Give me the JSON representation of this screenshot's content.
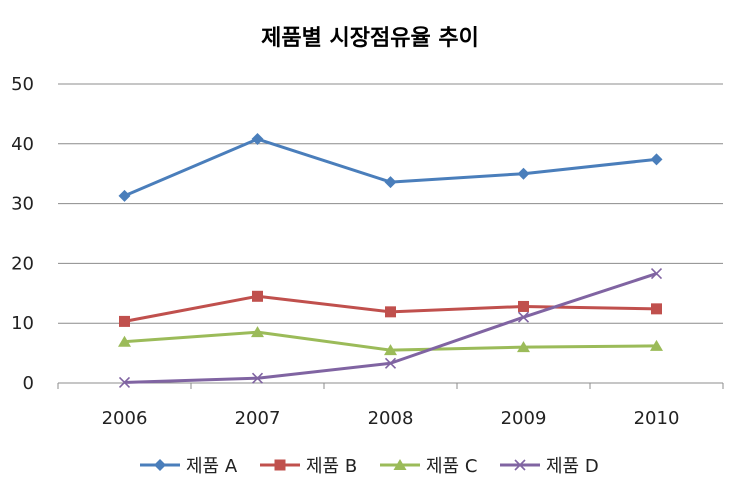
{
  "chart_data": {
    "type": "line",
    "title": "제품별 시장점유율 추이",
    "xlabel": "",
    "ylabel": "",
    "categories": [
      "2006",
      "2007",
      "2008",
      "2009",
      "2010"
    ],
    "ylim": [
      0,
      50
    ],
    "yticks": [
      "0",
      "10",
      "20",
      "30",
      "40",
      "50"
    ],
    "grid": true,
    "legend_position": "bottom",
    "series": [
      {
        "name": "제품 A",
        "values": [
          31.3,
          40.8,
          33.6,
          35.0,
          37.4
        ],
        "color": "#4a7ebb",
        "marker": "diamond"
      },
      {
        "name": "제품 B",
        "values": [
          10.3,
          14.5,
          11.9,
          12.8,
          12.4
        ],
        "color": "#c0504d",
        "marker": "square"
      },
      {
        "name": "제품 C",
        "values": [
          6.9,
          8.5,
          5.5,
          6.0,
          6.2
        ],
        "color": "#9bbb59",
        "marker": "triangle"
      },
      {
        "name": "제품 D",
        "values": [
          0.1,
          0.8,
          3.3,
          11.0,
          18.3
        ],
        "color": "#8064a2",
        "marker": "x"
      }
    ]
  }
}
